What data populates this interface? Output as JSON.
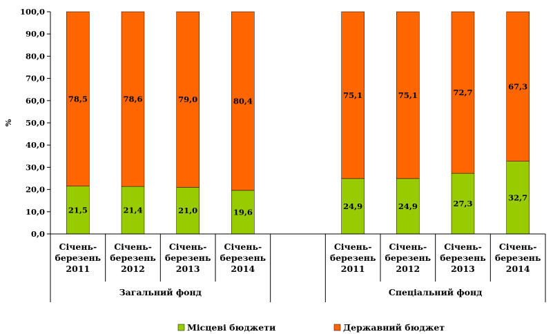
{
  "chart_data": {
    "type": "bar",
    "stacked": true,
    "ylabel": "%",
    "ylim": [
      0,
      100
    ],
    "yticks": [
      "0,0",
      "10,0",
      "20,0",
      "30,0",
      "40,0",
      "50,0",
      "60,0",
      "70,0",
      "80,0",
      "90,0",
      "100,0"
    ],
    "categories": [
      [
        "Січень-",
        "березень",
        "2011"
      ],
      [
        "Січень-",
        "березень",
        "2012"
      ],
      [
        "Січень-",
        "березень",
        "2013"
      ],
      [
        "Січень-",
        "березень",
        "2014"
      ],
      null,
      [
        "Січень-",
        "березень",
        "2011"
      ],
      [
        "Січень-",
        "березень",
        "2012"
      ],
      [
        "Січень-",
        "березень",
        "2013"
      ],
      [
        "Січень-",
        "березень",
        "2014"
      ]
    ],
    "groups": [
      {
        "label": "Загальний фонд",
        "span": [
          0,
          3
        ]
      },
      {
        "label": "Спеціальний фонд",
        "span": [
          5,
          8
        ]
      }
    ],
    "series": [
      {
        "name": "Місцеві бюджети",
        "color": "#99CC00",
        "values": [
          21.5,
          21.4,
          21.0,
          19.6,
          null,
          24.9,
          24.9,
          27.3,
          32.7
        ],
        "labels": [
          "21,5",
          "21,4",
          "21,0",
          "19,6",
          null,
          "24,9",
          "24,9",
          "27,3",
          "32,7"
        ]
      },
      {
        "name": "Державний бюджет",
        "color": "#FF6600",
        "values": [
          78.5,
          78.6,
          79.0,
          80.4,
          null,
          75.1,
          75.1,
          72.7,
          67.3
        ],
        "labels": [
          "78,5",
          "78,6",
          "79,0",
          "80,4",
          null,
          "75,1",
          "75,1",
          "72,7",
          "67,3"
        ]
      }
    ],
    "legend": "bottom",
    "grid": false
  }
}
